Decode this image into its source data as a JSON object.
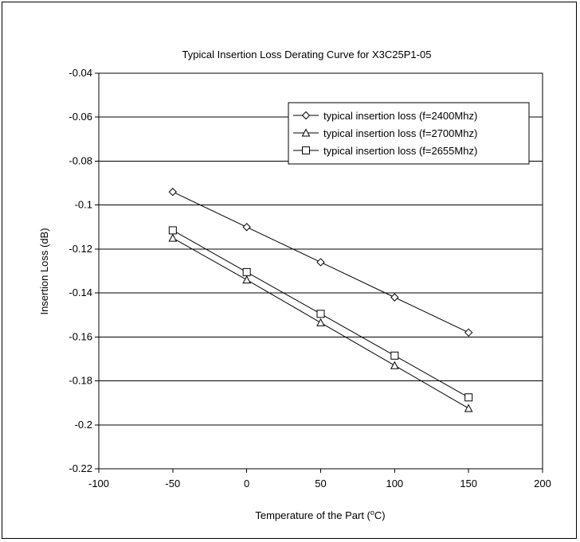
{
  "chart_data": {
    "type": "line",
    "title": "Typical Insertion Loss Derating Curve for X3C25P1-05",
    "xlabel_main": "Temperature of the Part (",
    "xlabel_sup": "o",
    "xlabel_end": "C)",
    "ylabel": "Insertion Loss (dB)",
    "xlim": [
      -100,
      200
    ],
    "ylim": [
      -0.22,
      -0.04
    ],
    "x_ticks": [
      "-100",
      "-50",
      "0",
      "50",
      "100",
      "150",
      "200"
    ],
    "y_ticks": [
      "-0.04",
      "-0.06",
      "-0.08",
      "-0.1",
      "-0.12",
      "-0.14",
      "-0.16",
      "-0.18",
      "-0.2",
      "-0.22"
    ],
    "grid": "horizontal",
    "legend_position": "top-right",
    "x": [
      -50,
      0,
      50,
      100,
      150
    ],
    "series": [
      {
        "name": "typical insertion loss (f=2400Mhz)",
        "marker": "diamond",
        "values": [
          -0.094,
          -0.11,
          -0.126,
          -0.142,
          -0.158
        ]
      },
      {
        "name": "typical insertion loss (f=2700Mhz)",
        "marker": "triangle",
        "values": [
          -0.115,
          -0.134,
          -0.1535,
          -0.173,
          -0.1925
        ]
      },
      {
        "name": "typical insertion loss (f=2655Mhz)",
        "marker": "square",
        "values": [
          -0.1115,
          -0.1305,
          -0.1495,
          -0.1685,
          -0.1875
        ]
      }
    ]
  }
}
